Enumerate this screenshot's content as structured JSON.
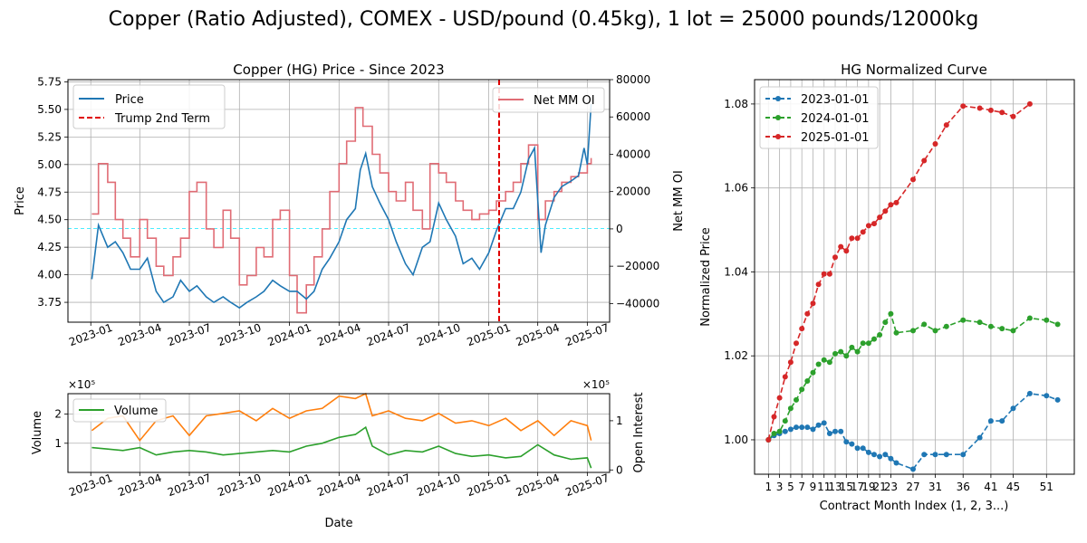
{
  "figure": {
    "suptitle": "Copper (Ratio Adjusted), COMEX - USD/pound (0.45kg), 1 lot = 25000 pounds/12000kg"
  },
  "chart_data": [
    {
      "id": "price-chart",
      "type": "line",
      "title": "Copper (HG) Price - Since 2023",
      "ylabel": "Price",
      "y2label": "Net MM OI",
      "ylim": [
        3.57,
        5.77
      ],
      "y2lim": [
        -50000,
        80000
      ],
      "yticks": [
        3.75,
        4.0,
        4.25,
        4.5,
        4.75,
        5.0,
        5.25,
        5.5,
        5.75
      ],
      "yticklabels": [
        "3.75",
        "4.00",
        "4.25",
        "4.50",
        "4.75",
        "5.00",
        "5.25",
        "5.50",
        "5.75"
      ],
      "y2ticks": [
        -40000,
        -20000,
        0,
        20000,
        40000,
        60000,
        80000
      ],
      "y2ticklabels": [
        "−40000",
        "−20000",
        "0",
        "20000",
        "40000",
        "60000",
        "80000"
      ],
      "xticklabels": [
        "2023-01",
        "2023-04",
        "2023-07",
        "2023-10",
        "2024-01",
        "2024-04",
        "2024-07",
        "2024-10",
        "2025-01",
        "2025-04",
        "2025-07"
      ],
      "grid": true,
      "legend_left": [
        "Price",
        "Trump 2nd Term"
      ],
      "legend_right": [
        "Net MM OI"
      ],
      "vline": {
        "date": "2025-01-20",
        "label": "Trump 2nd Term"
      },
      "hline": {
        "value": 4.42
      },
      "series": [
        {
          "name": "Price",
          "color": "#1f77b4",
          "x": [
            "2023-01-03",
            "2023-01-15",
            "2023-02-01",
            "2023-02-15",
            "2023-03-01",
            "2023-03-15",
            "2023-04-01",
            "2023-04-15",
            "2023-05-01",
            "2023-05-15",
            "2023-06-01",
            "2023-06-15",
            "2023-07-01",
            "2023-07-15",
            "2023-08-01",
            "2023-08-15",
            "2023-09-01",
            "2023-09-15",
            "2023-10-01",
            "2023-10-15",
            "2023-11-01",
            "2023-11-15",
            "2023-12-01",
            "2023-12-15",
            "2024-01-01",
            "2024-01-15",
            "2024-02-01",
            "2024-02-15",
            "2024-03-01",
            "2024-03-15",
            "2024-04-01",
            "2024-04-15",
            "2024-05-01",
            "2024-05-10",
            "2024-05-20",
            "2024-06-01",
            "2024-06-15",
            "2024-07-01",
            "2024-07-15",
            "2024-08-01",
            "2024-08-15",
            "2024-09-01",
            "2024-09-15",
            "2024-10-01",
            "2024-10-15",
            "2024-11-01",
            "2024-11-15",
            "2024-12-01",
            "2024-12-15",
            "2025-01-01",
            "2025-01-15",
            "2025-02-01",
            "2025-02-15",
            "2025-03-01",
            "2025-03-15",
            "2025-03-26",
            "2025-04-07",
            "2025-04-15",
            "2025-05-01",
            "2025-05-15",
            "2025-06-01",
            "2025-06-15",
            "2025-06-25",
            "2025-07-01",
            "2025-07-08"
          ],
          "y": [
            3.96,
            4.45,
            4.25,
            4.3,
            4.2,
            4.05,
            4.05,
            4.15,
            3.85,
            3.75,
            3.8,
            3.95,
            3.85,
            3.9,
            3.8,
            3.75,
            3.8,
            3.75,
            3.7,
            3.75,
            3.8,
            3.85,
            3.95,
            3.9,
            3.85,
            3.85,
            3.78,
            3.85,
            4.05,
            4.15,
            4.3,
            4.5,
            4.6,
            4.95,
            5.1,
            4.8,
            4.65,
            4.5,
            4.3,
            4.1,
            4.0,
            4.25,
            4.3,
            4.65,
            4.5,
            4.35,
            4.1,
            4.15,
            4.05,
            4.2,
            4.4,
            4.6,
            4.6,
            4.75,
            5.05,
            5.15,
            4.2,
            4.45,
            4.7,
            4.8,
            4.85,
            4.9,
            5.15,
            5.0,
            5.55
          ]
        },
        {
          "name": "Net MM OI",
          "color": "#e06c75",
          "axis": "y2",
          "x": [
            "2023-01-03",
            "2023-01-15",
            "2023-02-01",
            "2023-02-15",
            "2023-03-01",
            "2023-03-15",
            "2023-04-01",
            "2023-04-15",
            "2023-05-01",
            "2023-05-15",
            "2023-06-01",
            "2023-06-15",
            "2023-07-01",
            "2023-07-15",
            "2023-08-01",
            "2023-08-15",
            "2023-09-01",
            "2023-09-15",
            "2023-10-01",
            "2023-10-15",
            "2023-11-01",
            "2023-11-15",
            "2023-12-01",
            "2023-12-15",
            "2024-01-01",
            "2024-01-15",
            "2024-02-01",
            "2024-02-15",
            "2024-03-01",
            "2024-03-15",
            "2024-04-01",
            "2024-04-15",
            "2024-05-01",
            "2024-05-15",
            "2024-06-01",
            "2024-06-15",
            "2024-07-01",
            "2024-07-15",
            "2024-08-01",
            "2024-08-15",
            "2024-09-01",
            "2024-09-15",
            "2024-10-01",
            "2024-10-15",
            "2024-11-01",
            "2024-11-15",
            "2024-12-01",
            "2024-12-15",
            "2025-01-01",
            "2025-01-15",
            "2025-02-01",
            "2025-02-15",
            "2025-03-01",
            "2025-03-15",
            "2025-04-01",
            "2025-04-15",
            "2025-05-01",
            "2025-05-15",
            "2025-06-01",
            "2025-06-15",
            "2025-07-01",
            "2025-07-08"
          ],
          "y": [
            8000,
            35000,
            25000,
            5000,
            -5000,
            -15000,
            5000,
            -5000,
            -20000,
            -25000,
            -15000,
            -5000,
            20000,
            25000,
            0,
            -10000,
            10000,
            -5000,
            -30000,
            -25000,
            -10000,
            -15000,
            5000,
            10000,
            -25000,
            -45000,
            -30000,
            -15000,
            0,
            20000,
            35000,
            47000,
            65000,
            55000,
            40000,
            30000,
            20000,
            15000,
            25000,
            10000,
            0,
            35000,
            30000,
            25000,
            15000,
            10000,
            5000,
            8000,
            10000,
            15000,
            20000,
            25000,
            35000,
            45000,
            5000,
            15000,
            20000,
            25000,
            28000,
            30000,
            35000,
            38000
          ]
        }
      ]
    },
    {
      "id": "volume-chart",
      "type": "line",
      "ylabel": "Volume",
      "y2label": "Open Interest",
      "multiplier_left": "×10⁵",
      "multiplier_right": "×10⁵",
      "ylim": [
        0,
        2.7
      ],
      "y2lim": [
        -0.05,
        1.55
      ],
      "yticks": [
        1,
        2
      ],
      "yticklabels": [
        "1",
        "2"
      ],
      "y2ticks": [
        0,
        1
      ],
      "y2ticklabels": [
        "0",
        "1"
      ],
      "xticklabels": [
        "2023-01",
        "2023-04",
        "2023-07",
        "2023-10",
        "2024-01",
        "2024-04",
        "2024-07",
        "2024-10",
        "2025-01",
        "2025-04",
        "2025-07"
      ],
      "xlabel": "Date",
      "grid": true,
      "legend": [
        "Volume"
      ],
      "series": [
        {
          "name": "Volume",
          "color": "#2ca02c",
          "x": [
            "2023-01-03",
            "2023-02-01",
            "2023-03-01",
            "2023-04-01",
            "2023-05-01",
            "2023-06-01",
            "2023-07-01",
            "2023-08-01",
            "2023-09-01",
            "2023-10-01",
            "2023-11-01",
            "2023-12-01",
            "2024-01-01",
            "2024-02-01",
            "2024-03-01",
            "2024-04-01",
            "2024-05-01",
            "2024-05-20",
            "2024-06-01",
            "2024-07-01",
            "2024-08-01",
            "2024-09-01",
            "2024-10-01",
            "2024-11-01",
            "2024-12-01",
            "2025-01-01",
            "2025-02-01",
            "2025-03-01",
            "2025-04-01",
            "2025-05-01",
            "2025-06-01",
            "2025-07-01",
            "2025-07-08"
          ],
          "y": [
            0.85,
            0.8,
            0.75,
            0.85,
            0.6,
            0.7,
            0.75,
            0.7,
            0.6,
            0.65,
            0.7,
            0.75,
            0.7,
            0.9,
            1.0,
            1.2,
            1.3,
            1.55,
            0.9,
            0.6,
            0.75,
            0.7,
            0.9,
            0.65,
            0.55,
            0.6,
            0.5,
            0.55,
            0.95,
            0.6,
            0.45,
            0.5,
            0.15
          ]
        },
        {
          "name": "Open Interest",
          "color": "#ff7f0e",
          "axis": "y2",
          "x": [
            "2023-01-03",
            "2023-02-01",
            "2023-03-01",
            "2023-04-01",
            "2023-05-01",
            "2023-06-01",
            "2023-07-01",
            "2023-08-01",
            "2023-09-01",
            "2023-10-01",
            "2023-11-01",
            "2023-12-01",
            "2024-01-01",
            "2024-02-01",
            "2024-03-01",
            "2024-04-01",
            "2024-05-01",
            "2024-05-20",
            "2024-06-01",
            "2024-07-01",
            "2024-08-01",
            "2024-09-01",
            "2024-10-01",
            "2024-11-01",
            "2024-12-01",
            "2025-01-01",
            "2025-02-01",
            "2025-03-01",
            "2025-04-01",
            "2025-05-01",
            "2025-06-01",
            "2025-07-01",
            "2025-07-08"
          ],
          "y": [
            0.8,
            1.05,
            1.1,
            0.6,
            1.0,
            1.1,
            0.7,
            1.1,
            1.15,
            1.2,
            1.0,
            1.25,
            1.05,
            1.2,
            1.25,
            1.5,
            1.45,
            1.55,
            1.1,
            1.2,
            1.05,
            1.0,
            1.15,
            0.95,
            1.0,
            0.9,
            1.05,
            0.8,
            1.0,
            0.7,
            1.0,
            0.9,
            0.6
          ]
        }
      ]
    },
    {
      "id": "curve-chart",
      "type": "line",
      "title": "HG Normalized Curve",
      "xlabel": "Contract Month Index (1, 2, 3...)",
      "ylabel": "Normalized Price",
      "xlim": [
        -1.5,
        56
      ],
      "ylim": [
        0.9918,
        1.0858
      ],
      "yticks": [
        1.0,
        1.02,
        1.04,
        1.06,
        1.08
      ],
      "yticklabels": [
        "1.00",
        "1.02",
        "1.04",
        "1.06",
        "1.08"
      ],
      "xticks": [
        1,
        3,
        5,
        7,
        9,
        11,
        13,
        15,
        17,
        19,
        21,
        23,
        27,
        31,
        36,
        41,
        45,
        51
      ],
      "xticklabels": [
        "1",
        "3",
        "5",
        "7",
        "9",
        "11",
        "13",
        "15",
        "17",
        "19",
        "21",
        "23",
        "27",
        "31",
        "36",
        "41",
        "45",
        "51"
      ],
      "grid": true,
      "legend": [
        "2023-01-01",
        "2024-01-01",
        "2025-01-01"
      ],
      "series": [
        {
          "name": "2023-01-01",
          "color": "#1f77b4",
          "x": [
            1,
            2,
            3,
            4,
            5,
            6,
            7,
            8,
            9,
            10,
            11,
            12,
            13,
            14,
            15,
            16,
            17,
            18,
            19,
            20,
            21,
            22,
            23,
            24,
            27,
            29,
            31,
            33,
            36,
            39,
            41,
            43,
            45,
            48,
            51,
            53
          ],
          "y": [
            1.0,
            1.001,
            1.0015,
            1.002,
            1.0025,
            1.003,
            1.003,
            1.003,
            1.0025,
            1.0035,
            1.004,
            1.0015,
            1.002,
            1.002,
            0.9995,
            0.999,
            0.998,
            0.998,
            0.997,
            0.9965,
            0.996,
            0.9965,
            0.9955,
            0.9945,
            0.993,
            0.9965,
            0.9965,
            0.9965,
            0.9965,
            1.0005,
            1.0045,
            1.0045,
            1.0075,
            1.011,
            1.0105,
            1.0095
          ]
        },
        {
          "name": "2024-01-01",
          "color": "#2ca02c",
          "x": [
            1,
            2,
            3,
            4,
            5,
            6,
            7,
            8,
            9,
            10,
            11,
            12,
            13,
            14,
            15,
            16,
            17,
            18,
            19,
            20,
            21,
            22,
            23,
            24,
            27,
            29,
            31,
            33,
            36,
            39,
            41,
            43,
            45,
            48,
            51,
            53
          ],
          "y": [
            1.0,
            1.0015,
            1.002,
            1.0045,
            1.0075,
            1.0095,
            1.012,
            1.014,
            1.016,
            1.018,
            1.019,
            1.0185,
            1.0205,
            1.021,
            1.02,
            1.022,
            1.021,
            1.023,
            1.023,
            1.024,
            1.025,
            1.028,
            1.03,
            1.0255,
            1.026,
            1.0275,
            1.026,
            1.027,
            1.0285,
            1.028,
            1.027,
            1.0265,
            1.026,
            1.029,
            1.0285,
            1.0275
          ]
        },
        {
          "name": "2025-01-01",
          "color": "#d62728",
          "x": [
            1,
            2,
            3,
            4,
            5,
            6,
            7,
            8,
            9,
            10,
            11,
            12,
            13,
            14,
            15,
            16,
            17,
            18,
            19,
            20,
            21,
            22,
            23,
            24,
            27,
            29,
            31,
            33,
            36,
            39,
            41,
            43,
            45,
            48
          ],
          "y": [
            1.0,
            1.0055,
            1.01,
            1.015,
            1.0185,
            1.023,
            1.0265,
            1.03,
            1.0325,
            1.037,
            1.0395,
            1.0395,
            1.0435,
            1.046,
            1.045,
            1.048,
            1.048,
            1.0495,
            1.051,
            1.0515,
            1.053,
            1.0545,
            1.056,
            1.0565,
            1.062,
            1.0665,
            1.0705,
            1.075,
            1.0795,
            1.079,
            1.0785,
            1.078,
            1.077,
            1.08
          ]
        }
      ]
    }
  ]
}
